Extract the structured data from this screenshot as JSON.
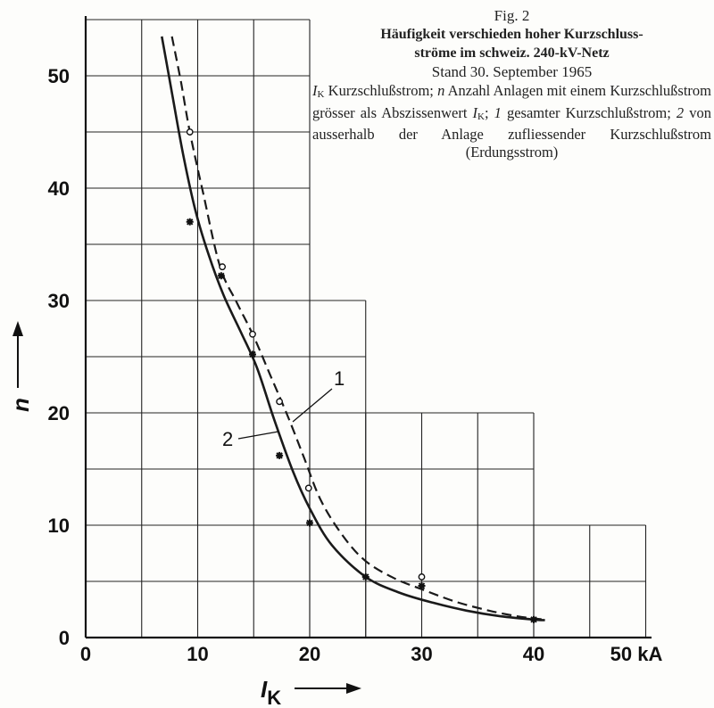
{
  "caption": {
    "fig": "Fig. 2",
    "title_line1": "Häufigkeit verschieden hoher Kurzschluss-",
    "title_line2": "ströme im schweiz. 240-kV-Netz",
    "stand": "Stand 30. September 1965",
    "desc": {
      "ik_sym": "I",
      "ik_sub": "K",
      "t1": " Kurzschlußstrom; ",
      "n_sym": "n",
      "t2": " Anzahl Anlagen mit einem Kurzschlußstrom grösser als Abszissenwert ",
      "ik2_sym": "I",
      "ik2_sub": "K",
      "t3": "; ",
      "c1": "1",
      "t4": " gesamter Kurzschlußstrom; ",
      "c2": "2",
      "t5": " von ausserhalb der Anlage zufliessender Kurzschlußstrom (Erdungsstrom)"
    }
  },
  "chart_data": {
    "type": "line",
    "xlabel": "I",
    "xlabel_sub": "K",
    "ylabel": "n",
    "xunit": "50 kA",
    "xticks": [
      "0",
      "10",
      "20",
      "30",
      "40"
    ],
    "yticks": [
      "0",
      "10",
      "20",
      "30",
      "40",
      "50"
    ],
    "xlim": [
      0,
      50
    ],
    "ylim": [
      0,
      55
    ],
    "grid": true,
    "series": [
      {
        "name": "1",
        "style": "dashed",
        "curve": [
          [
            7.7,
            53.5
          ],
          [
            8.5,
            49.5
          ],
          [
            9.3,
            45.0
          ],
          [
            10.5,
            39.5
          ],
          [
            12.0,
            33.0
          ],
          [
            13.5,
            29.8
          ],
          [
            15.0,
            26.8
          ],
          [
            16.5,
            23.3
          ],
          [
            18.0,
            19.8
          ],
          [
            19.5,
            16.0
          ],
          [
            21.0,
            12.2
          ],
          [
            23.0,
            9.0
          ],
          [
            25.0,
            6.8
          ],
          [
            27.5,
            5.3
          ],
          [
            30.0,
            4.3
          ],
          [
            33.0,
            3.2
          ],
          [
            36.0,
            2.4
          ],
          [
            38.5,
            1.9
          ],
          [
            40.0,
            1.7
          ],
          [
            41.0,
            1.6
          ]
        ],
        "points": [
          [
            9.3,
            45.0
          ],
          [
            12.2,
            33.0
          ],
          [
            14.9,
            27.0
          ],
          [
            17.3,
            21.0
          ],
          [
            19.9,
            13.3
          ],
          [
            30.0,
            5.4
          ]
        ]
      },
      {
        "name": "2",
        "style": "solid",
        "curve": [
          [
            6.8,
            53.5
          ],
          [
            7.7,
            48.5
          ],
          [
            8.7,
            43.0
          ],
          [
            9.8,
            38.0
          ],
          [
            11.0,
            34.0
          ],
          [
            12.3,
            30.5
          ],
          [
            13.8,
            27.3
          ],
          [
            15.3,
            24.0
          ],
          [
            16.8,
            19.5
          ],
          [
            18.5,
            14.8
          ],
          [
            20.0,
            11.5
          ],
          [
            22.0,
            8.2
          ],
          [
            25.0,
            5.4
          ],
          [
            28.0,
            4.0
          ],
          [
            31.0,
            3.1
          ],
          [
            34.0,
            2.4
          ],
          [
            37.0,
            1.9
          ],
          [
            40.0,
            1.6
          ],
          [
            41.0,
            1.55
          ]
        ],
        "points": [
          [
            9.3,
            37.0
          ],
          [
            12.1,
            32.2
          ],
          [
            14.9,
            25.2
          ],
          [
            17.3,
            16.2
          ],
          [
            20.0,
            10.2
          ],
          [
            25.0,
            5.4
          ],
          [
            30.0,
            4.6
          ],
          [
            40.0,
            1.6
          ]
        ]
      }
    ],
    "curve_labels": [
      "1",
      "2"
    ],
    "line_color": "#1a1a1a"
  }
}
